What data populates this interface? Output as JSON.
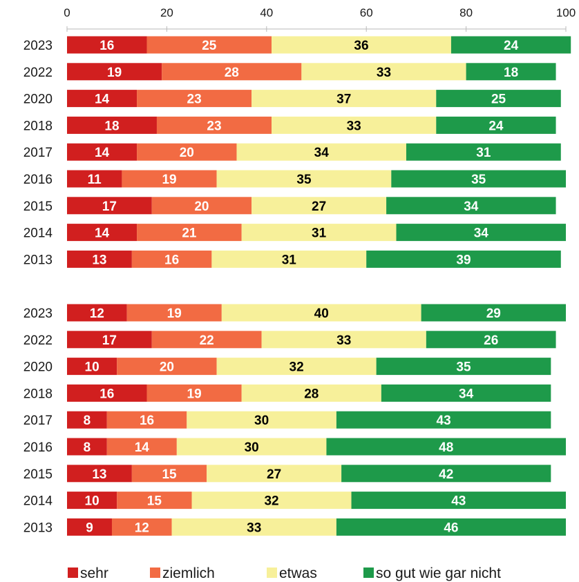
{
  "chart_data": {
    "type": "bar",
    "orientation": "horizontal",
    "stacked": true,
    "xlim": [
      0,
      100
    ],
    "x_ticks": [
      "0",
      "20",
      "40",
      "60",
      "80",
      "100"
    ],
    "legend": {
      "position": "bottom",
      "entries": [
        "sehr",
        "ziemlich",
        "etwas",
        "so gut wie gar nicht"
      ]
    },
    "colors": [
      "#d11f1f",
      "#f26b43",
      "#f7f09a",
      "#1e9a4a"
    ],
    "label_colors": [
      "#ffffff",
      "#ffffff",
      "#000000",
      "#ffffff"
    ],
    "groups": [
      {
        "categories": [
          "2023",
          "2022",
          "2020",
          "2018",
          "2017",
          "2016",
          "2015",
          "2014",
          "2013"
        ],
        "series": [
          {
            "name": "sehr",
            "values": [
              16,
              19,
              14,
              18,
              14,
              11,
              17,
              14,
              13
            ]
          },
          {
            "name": "ziemlich",
            "values": [
              25,
              28,
              23,
              23,
              20,
              19,
              20,
              21,
              16
            ]
          },
          {
            "name": "etwas",
            "values": [
              36,
              33,
              37,
              33,
              34,
              35,
              27,
              31,
              31
            ]
          },
          {
            "name": "so gut wie gar nicht",
            "values": [
              24,
              18,
              25,
              24,
              31,
              35,
              34,
              34,
              39
            ]
          }
        ]
      },
      {
        "categories": [
          "2023",
          "2022",
          "2020",
          "2018",
          "2017",
          "2016",
          "2015",
          "2014",
          "2013"
        ],
        "series": [
          {
            "name": "sehr",
            "values": [
              12,
              17,
              10,
              16,
              8,
              8,
              13,
              10,
              9
            ]
          },
          {
            "name": "ziemlich",
            "values": [
              19,
              22,
              20,
              19,
              16,
              14,
              15,
              15,
              12
            ]
          },
          {
            "name": "etwas",
            "values": [
              40,
              33,
              32,
              28,
              30,
              30,
              27,
              32,
              33
            ]
          },
          {
            "name": "so gut wie gar nicht",
            "values": [
              29,
              26,
              35,
              34,
              43,
              48,
              42,
              43,
              46
            ]
          }
        ]
      }
    ]
  }
}
